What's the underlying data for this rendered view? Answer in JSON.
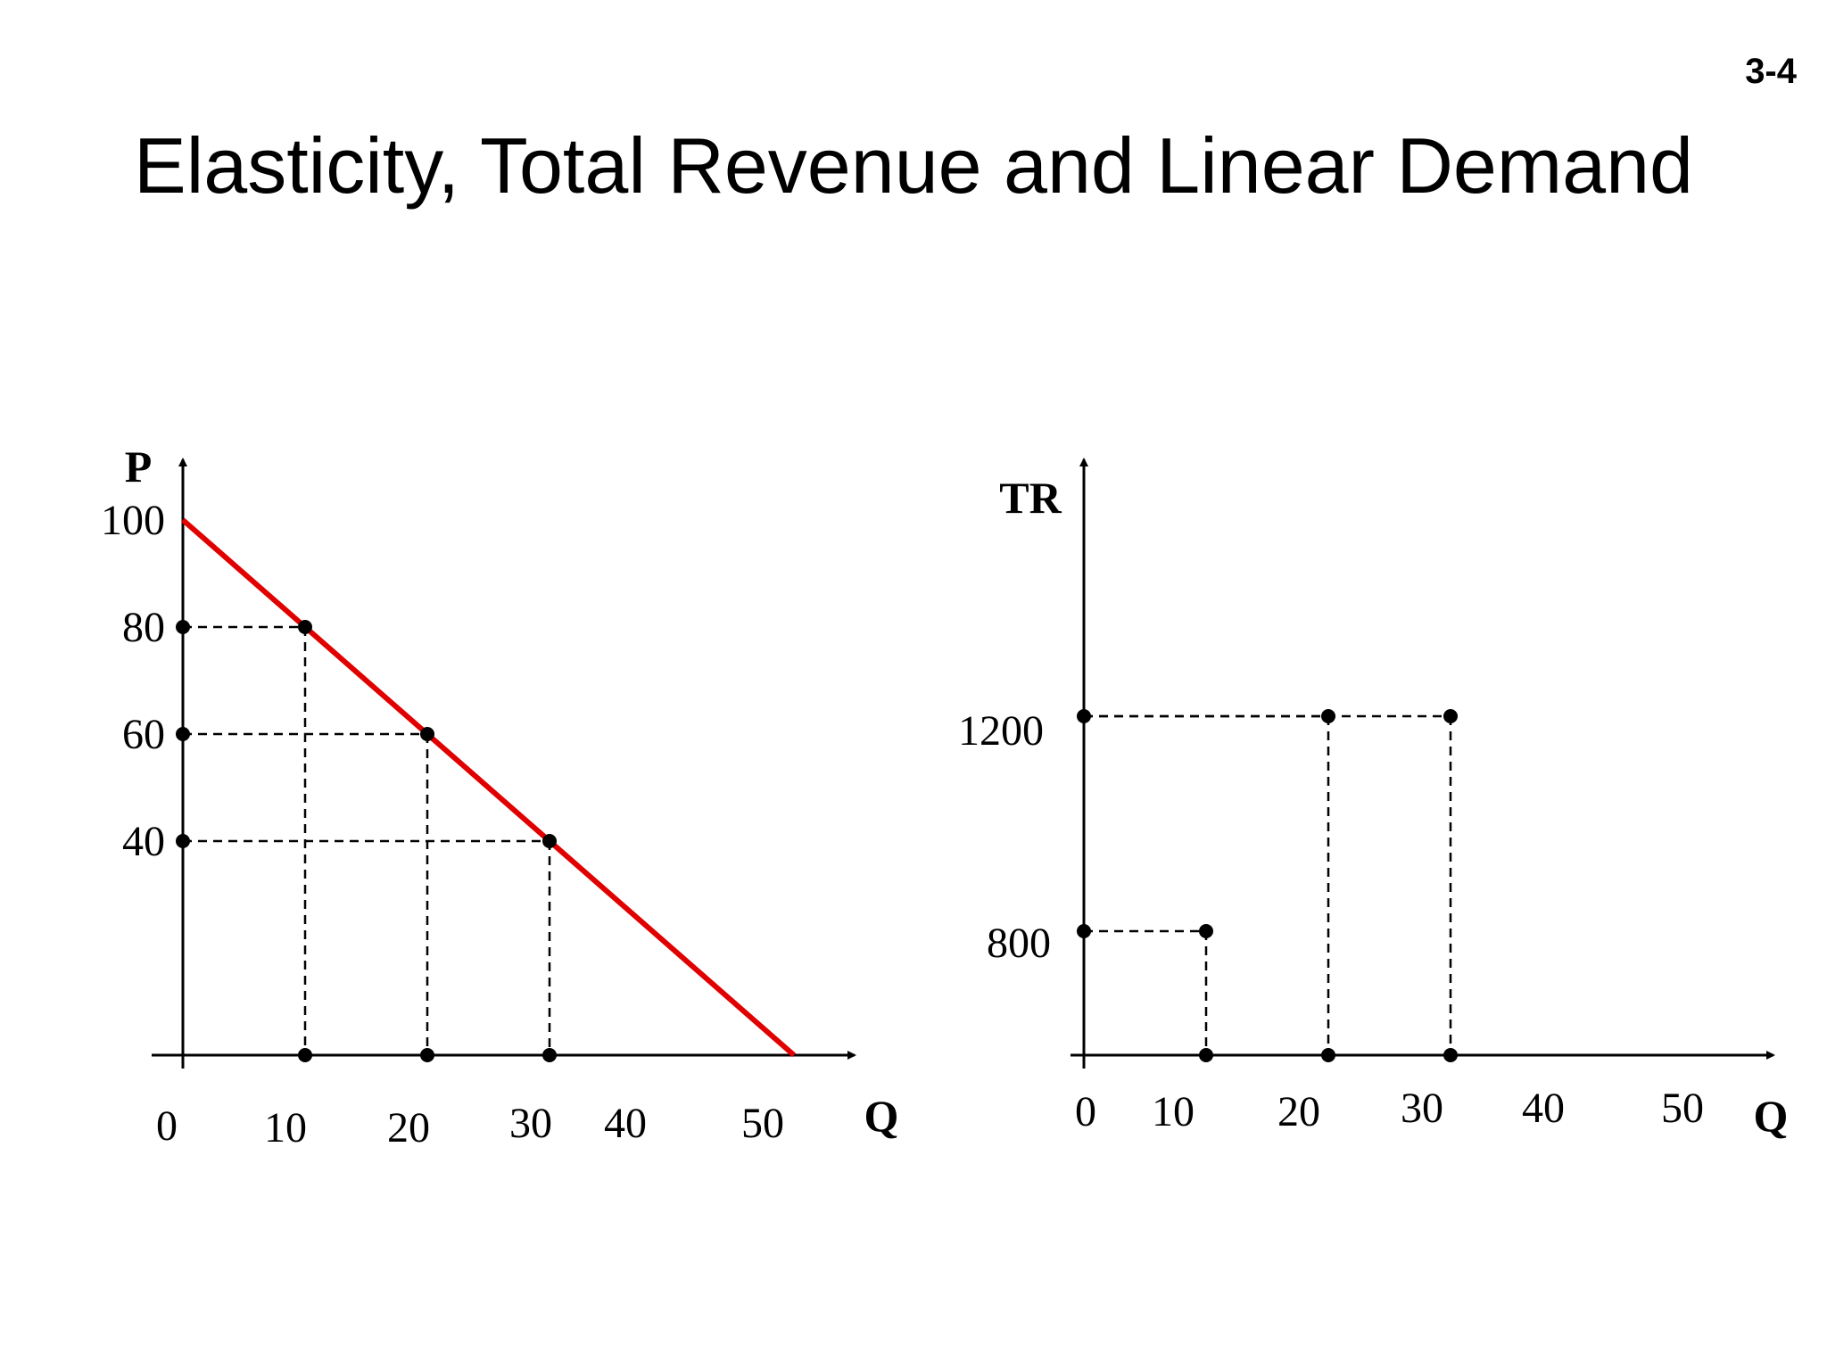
{
  "slide": {
    "number": "3-4",
    "title": "Elasticity, Total Revenue and Linear Demand"
  },
  "colors": {
    "demand_line": "#e00000",
    "axis": "#000000",
    "guide": "#000000"
  },
  "chart_data": [
    {
      "type": "line",
      "xlabel": "Q",
      "ylabel": "P",
      "x_ticks": [
        0,
        10,
        20,
        30,
        40,
        50
      ],
      "y_ticks": [
        40,
        60,
        80,
        100
      ],
      "xlim": [
        0,
        55
      ],
      "ylim": [
        0,
        105
      ],
      "series": [
        {
          "points": [
            [
              0,
              100
            ],
            [
              50,
              0
            ]
          ],
          "color": "#e00000"
        }
      ],
      "markers": [
        [
          10,
          80
        ],
        [
          20,
          60
        ],
        [
          30,
          40
        ]
      ],
      "guide_lines": "dashed"
    },
    {
      "type": "scatter",
      "xlabel": "Q",
      "ylabel": "TR",
      "x_ticks": [
        0,
        10,
        20,
        30,
        40,
        50
      ],
      "y_ticks": [
        800,
        1200
      ],
      "xlim": [
        0,
        57
      ],
      "markers": [
        [
          10,
          800
        ],
        [
          20,
          1200
        ],
        [
          30,
          1200
        ]
      ],
      "guide_lines": "dashed"
    }
  ]
}
